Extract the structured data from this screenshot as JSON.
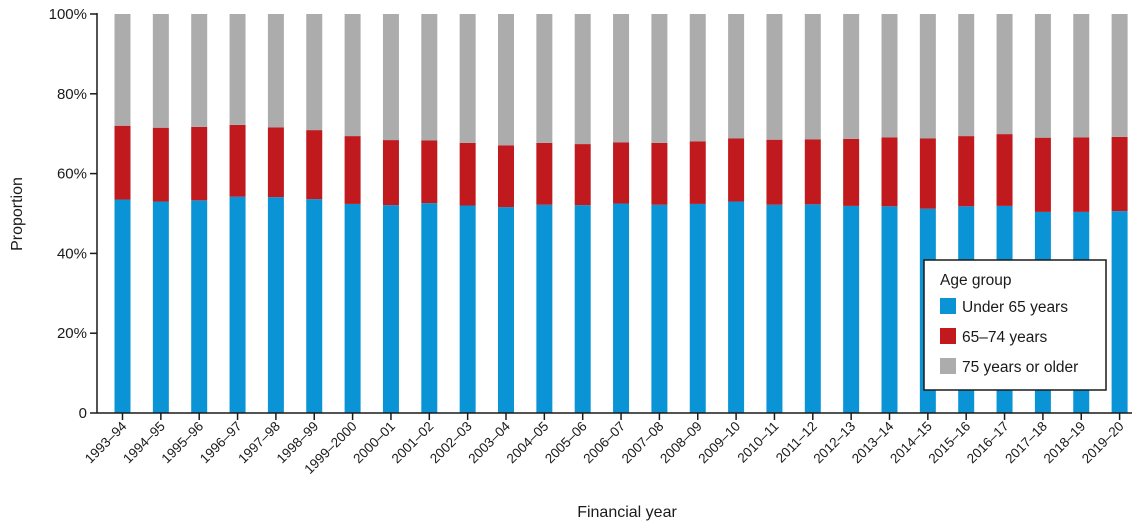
{
  "chart_data": {
    "type": "bar",
    "stacked": true,
    "xlabel": "Financial year",
    "ylabel": "Proportion",
    "ylim": [
      0,
      100
    ],
    "y_ticks": [
      "0",
      "20%",
      "40%",
      "60%",
      "80%",
      "100%"
    ],
    "grid": false,
    "legend": {
      "title": "Age group",
      "placement": "bottom-right"
    },
    "categories": [
      "1993–94",
      "1994–95",
      "1995–96",
      "1996–97",
      "1997–98",
      "1998–99",
      "1999–2000",
      "2000–01",
      "2001–02",
      "2002–03",
      "2003–04",
      "2004–05",
      "2005–06",
      "2006–07",
      "2007–08",
      "2008–09",
      "2009–10",
      "2010–11",
      "2011–12",
      "2012–13",
      "2013–14",
      "2014–15",
      "2015–16",
      "2016–17",
      "2017–18",
      "2018–19",
      "2019–20"
    ],
    "series": [
      {
        "name": "Under 65 years",
        "color": "#0a94d6",
        "values": [
          53.5,
          53,
          53.3,
          54.2,
          54.1,
          53.6,
          52.4,
          52.1,
          52.6,
          52,
          51.6,
          52.2,
          52.1,
          52.5,
          52.2,
          52.4,
          53,
          52.2,
          52.3,
          51.9,
          51.8,
          51.2,
          51.8,
          51.9,
          50.4,
          50.4,
          50.6
        ]
      },
      {
        "name": "65–74 years",
        "color": "#c0191e",
        "values": [
          18.5,
          18.5,
          18.4,
          18,
          17.5,
          17.3,
          17,
          16.3,
          15.7,
          15.7,
          15.5,
          15.5,
          15.3,
          15.3,
          15.5,
          15.7,
          15.8,
          16.3,
          16.3,
          16.8,
          17.3,
          17.6,
          17.6,
          18,
          18.6,
          18.7,
          18.6
        ]
      },
      {
        "name": "75 years or older",
        "color": "#acacac",
        "values": [
          28,
          28.5,
          28.3,
          27.8,
          28.4,
          29.1,
          30.6,
          31.6,
          31.7,
          32.3,
          32.9,
          32.3,
          32.6,
          32.2,
          32.3,
          31.9,
          31.2,
          31.5,
          31.4,
          31.3,
          30.9,
          31.2,
          30.6,
          30.1,
          31,
          30.9,
          30.8
        ]
      }
    ]
  }
}
